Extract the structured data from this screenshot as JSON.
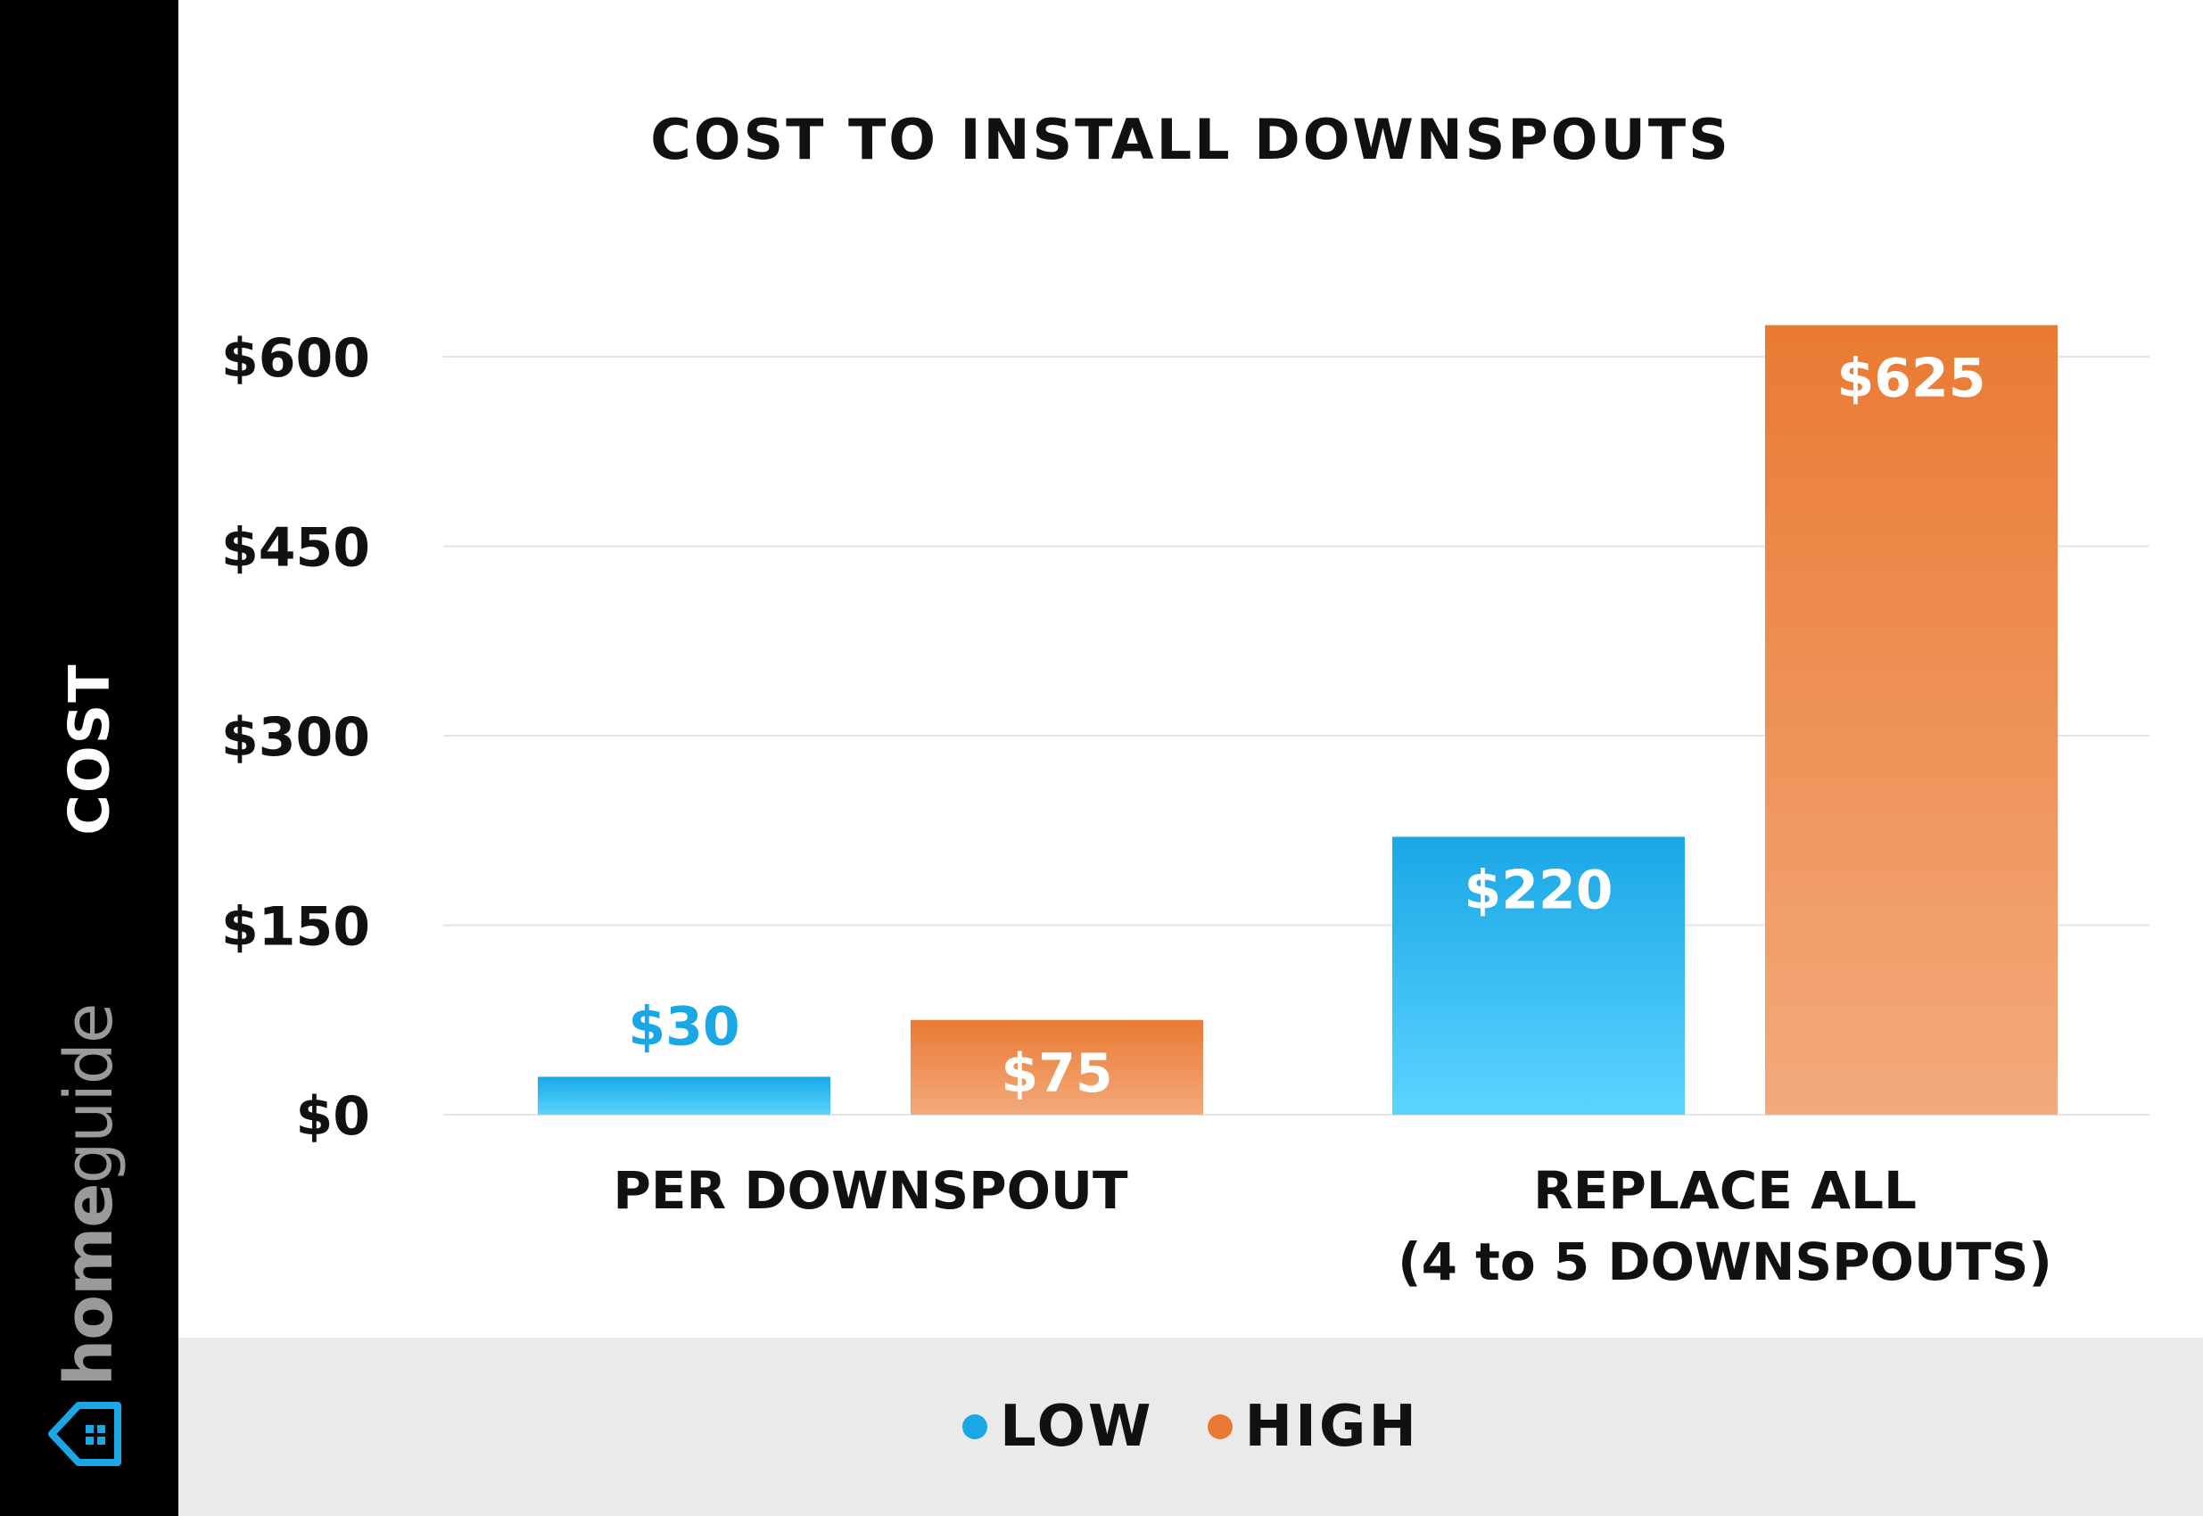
{
  "sidebar": {
    "ylabel": "COST",
    "brand_bold": "home",
    "brand_light": "guide",
    "logo_icon": "house-icon"
  },
  "colors": {
    "low_top": "#1aa7e6",
    "low_bottom": "#5bd4ff",
    "high_top": "#ea7a33",
    "high_bottom": "#f3aa7c",
    "low_label": "#1aa7e6",
    "grid": "#e4e4e4",
    "sidebar_bg": "#000000",
    "legend_bg": "#eaeaea"
  },
  "chart_data": {
    "type": "bar",
    "title": "COST TO INSTALL DOWNSPOUTS",
    "xlabel": "",
    "ylabel": "COST",
    "categories": [
      [
        "PER DOWNSPOUT"
      ],
      [
        "REPLACE ALL",
        "(4 to 5 DOWNSPOUTS)"
      ]
    ],
    "series": [
      {
        "name": "LOW",
        "values": [
          30,
          220
        ],
        "labels": [
          "$30",
          "$220"
        ]
      },
      {
        "name": "HIGH",
        "values": [
          75,
          625
        ],
        "labels": [
          "$75",
          "$625"
        ]
      }
    ],
    "yticks": [
      0,
      150,
      300,
      450,
      600
    ],
    "ytick_labels": [
      "$0",
      "$150",
      "$300",
      "$450",
      "$600"
    ],
    "ylim": [
      0,
      625
    ],
    "grid": true,
    "legend_position": "bottom"
  }
}
